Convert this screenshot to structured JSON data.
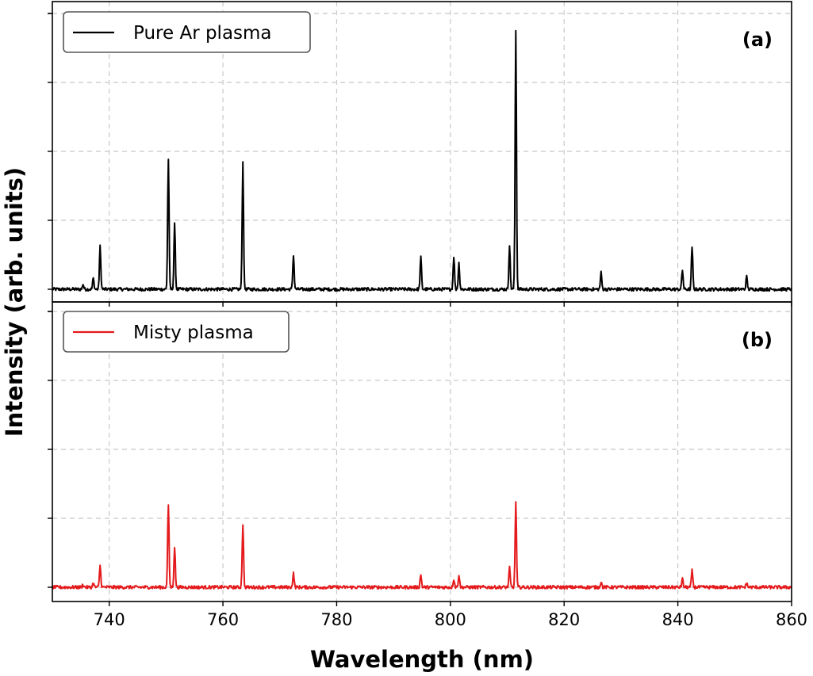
{
  "chart_data": {
    "type": "line",
    "ylabel": "Intensity (arb. units)",
    "xlabel": "Wavelength (nm)",
    "xlim": [
      730,
      860
    ],
    "xticks": [
      740,
      760,
      780,
      800,
      820,
      840,
      860
    ],
    "grid": true,
    "shared_x": true,
    "panels": [
      {
        "id": "a",
        "label": "(a)",
        "series": [
          {
            "name": "Pure Ar plasma",
            "color": "#000000",
            "baseline": 0.0,
            "noise": 0.006,
            "peaks": [
              {
                "x": 735.4,
                "y": 0.018
              },
              {
                "x": 737.2,
                "y": 0.04
              },
              {
                "x": 738.4,
                "y": 0.155
              },
              {
                "x": 750.4,
                "y": 0.47
              },
              {
                "x": 751.5,
                "y": 0.235
              },
              {
                "x": 763.5,
                "y": 0.46
              },
              {
                "x": 772.4,
                "y": 0.125
              },
              {
                "x": 794.8,
                "y": 0.115
              },
              {
                "x": 800.6,
                "y": 0.12
              },
              {
                "x": 801.5,
                "y": 0.095
              },
              {
                "x": 810.4,
                "y": 0.16
              },
              {
                "x": 811.5,
                "y": 0.94
              },
              {
                "x": 826.5,
                "y": 0.06
              },
              {
                "x": 840.8,
                "y": 0.07
              },
              {
                "x": 842.5,
                "y": 0.155
              },
              {
                "x": 852.1,
                "y": 0.045
              }
            ]
          }
        ],
        "legend_position": "top-left"
      },
      {
        "id": "b",
        "label": "(b)",
        "series": [
          {
            "name": "Misty plasma",
            "color": "#e41a1c",
            "baseline": 0.0,
            "noise": 0.006,
            "peaks": [
              {
                "x": 735.4,
                "y": 0.01
              },
              {
                "x": 737.2,
                "y": 0.015
              },
              {
                "x": 738.4,
                "y": 0.08
              },
              {
                "x": 750.4,
                "y": 0.3
              },
              {
                "x": 751.5,
                "y": 0.145
              },
              {
                "x": 763.5,
                "y": 0.23
              },
              {
                "x": 772.4,
                "y": 0.05
              },
              {
                "x": 794.8,
                "y": 0.045
              },
              {
                "x": 800.6,
                "y": 0.03
              },
              {
                "x": 801.5,
                "y": 0.045
              },
              {
                "x": 810.4,
                "y": 0.07
              },
              {
                "x": 811.5,
                "y": 0.31
              },
              {
                "x": 826.5,
                "y": 0.02
              },
              {
                "x": 840.8,
                "y": 0.03
              },
              {
                "x": 842.5,
                "y": 0.06
              },
              {
                "x": 852.1,
                "y": 0.015
              }
            ]
          }
        ],
        "legend_position": "top-left"
      }
    ]
  }
}
